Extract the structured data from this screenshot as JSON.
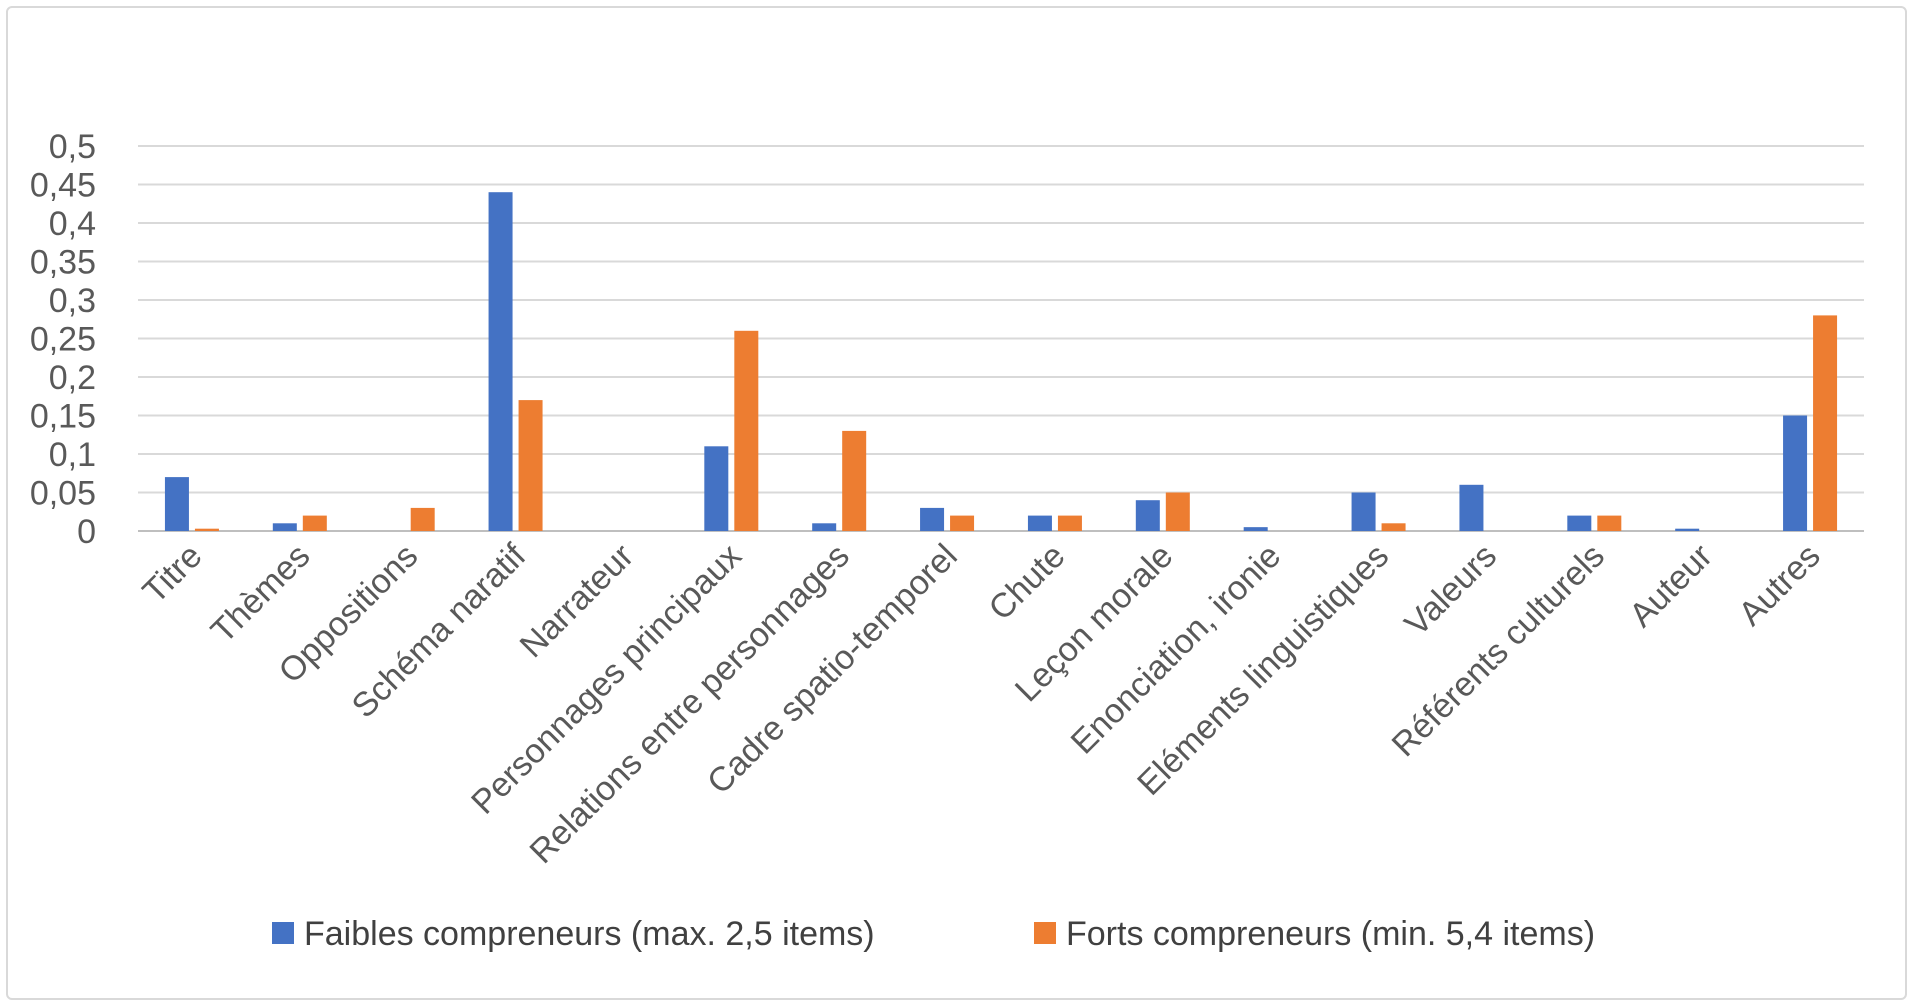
{
  "chart_data": {
    "type": "bar",
    "title": "",
    "xlabel": "",
    "ylabel": "",
    "ylim": [
      0,
      0.5
    ],
    "y_ticks": [
      "0",
      "0,05",
      "0,1",
      "0,15",
      "0,2",
      "0,25",
      "0,3",
      "0,35",
      "0,4",
      "0,45",
      "0,5"
    ],
    "grid": true,
    "legend_position": "bottom",
    "categories": [
      "Titre",
      "Thèmes",
      "Oppositions",
      "Schéma naratif",
      "Narrateur",
      "Personnages principaux",
      "Relations entre personnages",
      "Cadre spatio-temporel",
      "Chute",
      "Leçon morale",
      "Enonciation, ironie",
      "Eléments linguistiques",
      "Valeurs",
      "Référents culturels",
      "Auteur",
      "Autres"
    ],
    "series": [
      {
        "name": "Faibles compreneurs (max. 2,5 items)",
        "color": "#4472c4",
        "values": [
          0.07,
          0.01,
          0,
          0.44,
          0,
          0.11,
          0.01,
          0.03,
          0.02,
          0.04,
          0.005,
          0.05,
          0.06,
          0.02,
          0.003,
          0.15
        ]
      },
      {
        "name": "Forts compreneurs (min. 5,4 items)",
        "color": "#ed7d31",
        "values": [
          0.003,
          0.02,
          0.03,
          0.17,
          0,
          0.26,
          0.13,
          0.02,
          0.02,
          0.05,
          0,
          0.01,
          0,
          0.02,
          0,
          0.28
        ]
      }
    ]
  }
}
